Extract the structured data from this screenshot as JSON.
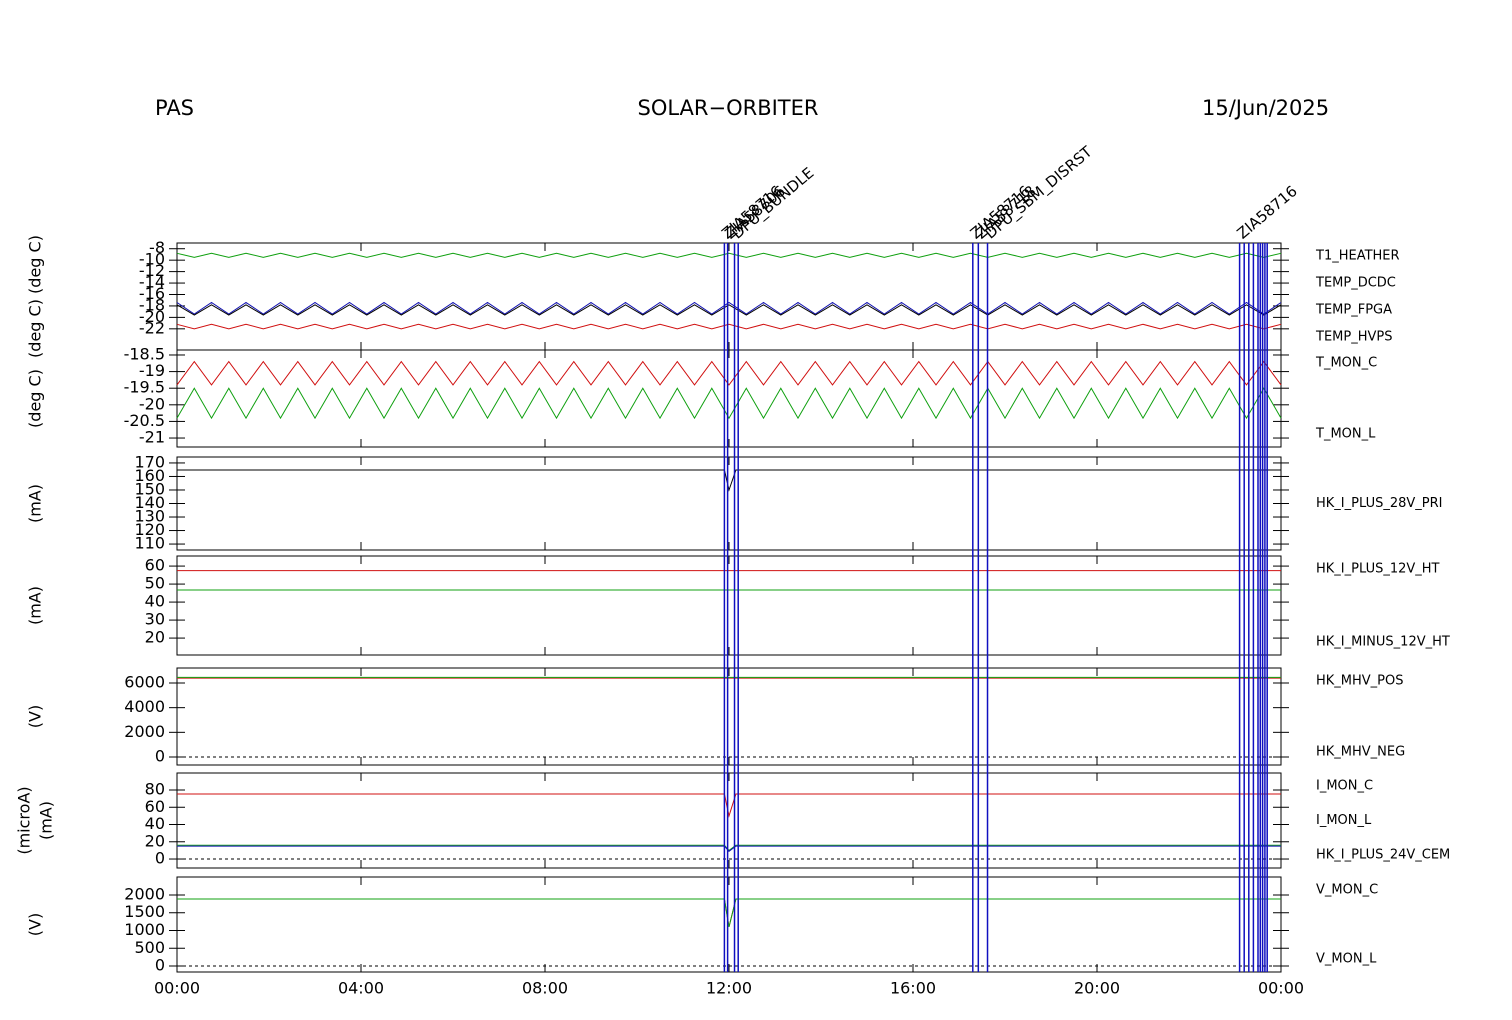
{
  "header": {
    "left": "PAS",
    "center": "SOLAR−ORBITER",
    "right": "15/Jun/2025"
  },
  "events": {
    "color": "#1010c0",
    "x": [
      11.9,
      11.97,
      12.12,
      12.2,
      17.3,
      17.42,
      17.62,
      23.1,
      23.2,
      23.3,
      23.4,
      23.5,
      23.55,
      23.6,
      23.65,
      23.7
    ],
    "labels": [
      "ZIA58716",
      "ZIA58706",
      "DPU_BUNDLE",
      null,
      "ZIA58716",
      "ZIA58718",
      "DPU_SBM_DISRST",
      "ZIA58716",
      null,
      null,
      null,
      null,
      null,
      null,
      null,
      null
    ]
  },
  "chart_data": [
    {
      "type": "line",
      "ylabel": [
        "(deg C) (deg C)"
      ],
      "ylim": [
        -25.7,
        -7
      ],
      "yticks": [
        -8,
        -10,
        -12,
        -14,
        -16,
        -18,
        -20,
        -22
      ],
      "xlim": [
        0,
        24
      ],
      "x": [
        0,
        0.375,
        0.75,
        1.125,
        1.5,
        1.875,
        2.25,
        2.625,
        3,
        3.375,
        3.75,
        4.125,
        4.5,
        4.875,
        5.25,
        5.625,
        6,
        6.375,
        6.75,
        7.125,
        7.5,
        7.875,
        8.25,
        8.625,
        9,
        9.375,
        9.75,
        10.125,
        10.5,
        10.875,
        11.25,
        11.625,
        12,
        12.375,
        12.75,
        13.125,
        13.5,
        13.875,
        14.25,
        14.625,
        15,
        15.375,
        15.75,
        16.125,
        16.5,
        16.875,
        17.25,
        17.625,
        18,
        18.375,
        18.75,
        19.125,
        19.5,
        19.875,
        20.25,
        20.625,
        21,
        21.375,
        21.75,
        22.125,
        22.5,
        22.875,
        23.25,
        23.625,
        24
      ],
      "series": [
        {
          "name": "T1_HEATHER",
          "color": "#d01010",
          "values": [
            -21.2,
            -22,
            -21.2,
            -22,
            -21.2,
            -22,
            -21.2,
            -22,
            -21.2,
            -22,
            -21.2,
            -22,
            -21.2,
            -22,
            -21.2,
            -22,
            -21.2,
            -22,
            -21.2,
            -22,
            -21.2,
            -22,
            -21.2,
            -22,
            -21.2,
            -22,
            -21.2,
            -22,
            -21.2,
            -22,
            -21.2,
            -22,
            -21.2,
            -22,
            -21.2,
            -22,
            -21.2,
            -22,
            -21.2,
            -22,
            -21.2,
            -22,
            -21.2,
            -22,
            -21.2,
            -22,
            -21.2,
            -22,
            -21.2,
            -22,
            -21.2,
            -22,
            -21.2,
            -22,
            -21.2,
            -22,
            -21.2,
            -22,
            -21.2,
            -22,
            -21.2,
            -22,
            -21.2,
            -22,
            -21.2
          ]
        },
        {
          "name": "TEMP_DCDC",
          "color": "#10a010",
          "values": [
            -8.8,
            -9.5,
            -8.8,
            -9.5,
            -8.8,
            -9.5,
            -8.8,
            -9.5,
            -8.8,
            -9.5,
            -8.8,
            -9.5,
            -8.8,
            -9.5,
            -8.8,
            -9.5,
            -8.8,
            -9.5,
            -8.8,
            -9.5,
            -8.8,
            -9.5,
            -8.8,
            -9.5,
            -8.8,
            -9.5,
            -8.8,
            -9.5,
            -8.8,
            -9.5,
            -8.8,
            -9.5,
            -8.8,
            -9.5,
            -8.8,
            -9.5,
            -8.8,
            -9.5,
            -8.8,
            -9.5,
            -8.8,
            -9.5,
            -8.8,
            -9.5,
            -8.8,
            -9.5,
            -8.8,
            -9.5,
            -8.8,
            -9.5,
            -8.8,
            -9.5,
            -8.8,
            -9.5,
            -8.8,
            -9.5,
            -8.8,
            -9.5,
            -8.8,
            -9.5,
            -8.8,
            -9.5,
            -8.8,
            -9.5,
            -8.8
          ]
        },
        {
          "name": "TEMP_FPGA",
          "color": "#1010b0",
          "values": [
            -17.4,
            -19.4,
            -17.4,
            -19.4,
            -17.4,
            -19.4,
            -17.4,
            -19.4,
            -17.4,
            -19.4,
            -17.4,
            -19.4,
            -17.4,
            -19.4,
            -17.4,
            -19.4,
            -17.4,
            -19.4,
            -17.4,
            -19.4,
            -17.4,
            -19.4,
            -17.4,
            -19.4,
            -17.4,
            -19.4,
            -17.4,
            -19.4,
            -17.4,
            -19.4,
            -17.4,
            -19.4,
            -17.4,
            -19.4,
            -17.4,
            -19.4,
            -17.4,
            -19.4,
            -17.4,
            -19.4,
            -17.4,
            -19.4,
            -17.4,
            -19.4,
            -17.4,
            -19.4,
            -17.4,
            -19.4,
            -17.4,
            -19.4,
            -17.4,
            -19.4,
            -17.4,
            -19.4,
            -17.4,
            -19.4,
            -17.4,
            -19.4,
            -17.4,
            -19.4,
            -17.4,
            -19.4,
            -17.4,
            -19.4,
            -17.4
          ]
        },
        {
          "name": "TEMP_HVPS",
          "color": "#000000",
          "values": [
            -17.8,
            -19.6,
            -17.8,
            -19.6,
            -17.8,
            -19.6,
            -17.8,
            -19.6,
            -17.8,
            -19.6,
            -17.8,
            -19.6,
            -17.8,
            -19.6,
            -17.8,
            -19.6,
            -17.8,
            -19.6,
            -17.8,
            -19.6,
            -17.8,
            -19.6,
            -17.8,
            -19.6,
            -17.8,
            -19.6,
            -17.8,
            -19.6,
            -17.8,
            -19.6,
            -17.8,
            -19.6,
            -17.8,
            -19.6,
            -17.8,
            -19.6,
            -17.8,
            -19.6,
            -17.8,
            -19.6,
            -17.8,
            -19.6,
            -17.8,
            -19.6,
            -17.8,
            -19.6,
            -17.8,
            -19.6,
            -17.8,
            -19.6,
            -17.8,
            -19.6,
            -17.8,
            -19.6,
            -17.8,
            -19.6,
            -17.8,
            -19.6,
            -17.8,
            -19.6,
            -17.8,
            -19.6,
            -17.8,
            -19.6,
            -17.8
          ]
        }
      ]
    },
    {
      "type": "line",
      "ylabel": [
        "(deg C)"
      ],
      "ylim": [
        -21.27,
        -18.35
      ],
      "yticks": [
        -18.5,
        -19.0,
        -19.5,
        -20.0,
        -20.5,
        -21.0
      ],
      "xlim": [
        0,
        24
      ],
      "x": [
        0,
        0.375,
        0.75,
        1.125,
        1.5,
        1.875,
        2.25,
        2.625,
        3,
        3.375,
        3.75,
        4.125,
        4.5,
        4.875,
        5.25,
        5.625,
        6,
        6.375,
        6.75,
        7.125,
        7.5,
        7.875,
        8.25,
        8.625,
        9,
        9.375,
        9.75,
        10.125,
        10.5,
        10.875,
        11.25,
        11.625,
        12,
        12.375,
        12.75,
        13.125,
        13.5,
        13.875,
        14.25,
        14.625,
        15,
        15.375,
        15.75,
        16.125,
        16.5,
        16.875,
        17.25,
        17.625,
        18,
        18.375,
        18.75,
        19.125,
        19.5,
        19.875,
        20.25,
        20.625,
        21,
        21.375,
        21.75,
        22.125,
        22.5,
        22.875,
        23.25,
        23.625,
        24
      ],
      "series": [
        {
          "name": "T_MON_C",
          "color": "#d01010",
          "values": [
            -19.4,
            -18.7,
            -19.4,
            -18.7,
            -19.4,
            -18.7,
            -19.4,
            -18.7,
            -19.4,
            -18.7,
            -19.4,
            -18.7,
            -19.4,
            -18.7,
            -19.4,
            -18.7,
            -19.4,
            -18.7,
            -19.4,
            -18.7,
            -19.4,
            -18.7,
            -19.4,
            -18.7,
            -19.4,
            -18.7,
            -19.4,
            -18.7,
            -19.4,
            -18.7,
            -19.4,
            -18.7,
            -19.4,
            -18.7,
            -19.4,
            -18.7,
            -19.4,
            -18.7,
            -19.4,
            -18.7,
            -19.4,
            -18.7,
            -19.4,
            -18.7,
            -19.4,
            -18.7,
            -19.4,
            -18.7,
            -19.4,
            -18.7,
            -19.4,
            -18.7,
            -19.4,
            -18.7,
            -19.4,
            -18.7,
            -19.4,
            -18.7,
            -19.4,
            -18.7,
            -19.4,
            -18.7,
            -19.4,
            -18.7,
            -19.4
          ]
        },
        {
          "name": "T_MON_L",
          "color": "#10a010",
          "values": [
            -20.4,
            -19.5,
            -20.4,
            -19.5,
            -20.4,
            -19.5,
            -20.4,
            -19.5,
            -20.4,
            -19.5,
            -20.4,
            -19.5,
            -20.4,
            -19.5,
            -20.4,
            -19.5,
            -20.4,
            -19.5,
            -20.4,
            -19.5,
            -20.4,
            -19.5,
            -20.4,
            -19.5,
            -20.4,
            -19.5,
            -20.4,
            -19.5,
            -20.4,
            -19.5,
            -20.4,
            -19.5,
            -20.4,
            -19.5,
            -20.4,
            -19.5,
            -20.4,
            -19.5,
            -20.4,
            -19.5,
            -20.4,
            -19.5,
            -20.4,
            -19.5,
            -20.4,
            -19.5,
            -20.4,
            -19.5,
            -20.4,
            -19.5,
            -20.4,
            -19.5,
            -20.4,
            -19.5,
            -20.4,
            -19.5,
            -20.4,
            -19.5,
            -20.4,
            -19.5,
            -20.4,
            -19.5,
            -20.4,
            -19.5,
            -20.4
          ]
        }
      ]
    },
    {
      "type": "line",
      "ylabel": [
        "(mA)"
      ],
      "ylim": [
        105.6,
        174.4
      ],
      "yticks": [
        110,
        120,
        130,
        140,
        150,
        160,
        170
      ],
      "xlim": [
        0,
        24
      ],
      "x": [
        0,
        11.9,
        12.0,
        12.15,
        24
      ],
      "series": [
        {
          "name": "HK_I_PLUS_28V_PRI",
          "color": "#000000",
          "values": [
            164.8,
            164.8,
            150,
            164.8,
            164.8
          ]
        }
      ]
    },
    {
      "type": "line",
      "ylabel": [
        "(mA)"
      ],
      "ylim": [
        10.6,
        65.6
      ],
      "yticks": [
        20,
        30,
        40,
        50,
        60
      ],
      "xlim": [
        0,
        24
      ],
      "x": [
        0,
        24
      ],
      "series": [
        {
          "name": "HK_I_PLUS_12V_HT",
          "color": "#d01010",
          "values": [
            57.5,
            57.5
          ]
        },
        {
          "name": "HK_I_MINUS_12V_HT",
          "color": "#10a010",
          "values": [
            46.7,
            46.7
          ]
        }
      ]
    },
    {
      "type": "line",
      "ylabel": [
        "(V)"
      ],
      "ylim": [
        -649,
        7216
      ],
      "yticks": [
        0,
        2000,
        4000,
        6000
      ],
      "xlim": [
        0,
        24
      ],
      "zero_line": true,
      "x": [
        0,
        24
      ],
      "series": [
        {
          "name": "HK_MHV_POS",
          "color": "#d01010",
          "values": [
            6400,
            6400
          ]
        },
        {
          "name": "HK_MHV_NEG",
          "color": "#10a010",
          "values": [
            6450,
            6450
          ]
        }
      ]
    },
    {
      "type": "line",
      "ylabel": [
        "(microA)",
        "(mA)"
      ],
      "ylim": [
        -10.4,
        99.7
      ],
      "yticks": [
        0,
        20,
        40,
        60,
        80
      ],
      "xlim": [
        0,
        24
      ],
      "zero_line": true,
      "x": [
        0,
        11.9,
        12.0,
        12.15,
        24
      ],
      "series": [
        {
          "name": "I_MON_C",
          "color": "#d01010",
          "values": [
            75.4,
            75.4,
            50,
            75.4,
            75.4
          ]
        },
        {
          "name": "I_MON_L",
          "color": "#10a010",
          "values": [
            16,
            16,
            10,
            16,
            16
          ]
        },
        {
          "name": "HK_I_PLUS_24V_CEM",
          "color": "#1010b0",
          "values": [
            15,
            15,
            9,
            15,
            15
          ]
        }
      ]
    },
    {
      "type": "line",
      "ylabel": [
        "(V)"
      ],
      "ylim": [
        -169,
        2507
      ],
      "yticks": [
        0,
        500,
        1000,
        1500,
        2000
      ],
      "xlim": [
        0,
        24
      ],
      "zero_line": true,
      "x": [
        0,
        11.9,
        12.0,
        12.15,
        24
      ],
      "xticks": [
        {
          "value": 0,
          "label": "00:00"
        },
        {
          "value": 4,
          "label": "04:00"
        },
        {
          "value": 8,
          "label": "08:00"
        },
        {
          "value": 12,
          "label": "12:00"
        },
        {
          "value": 16,
          "label": "16:00"
        },
        {
          "value": 20,
          "label": "20:00"
        },
        {
          "value": 24,
          "label": "00:00"
        }
      ],
      "series": [
        {
          "name": "V_MON_C",
          "color": "#d01010",
          "values": [
            1887,
            1887,
            1100,
            1887,
            1887
          ]
        },
        {
          "name": "V_MON_L",
          "color": "#10a010",
          "values": [
            1887,
            1887,
            1100,
            1887,
            1887
          ]
        }
      ]
    }
  ]
}
